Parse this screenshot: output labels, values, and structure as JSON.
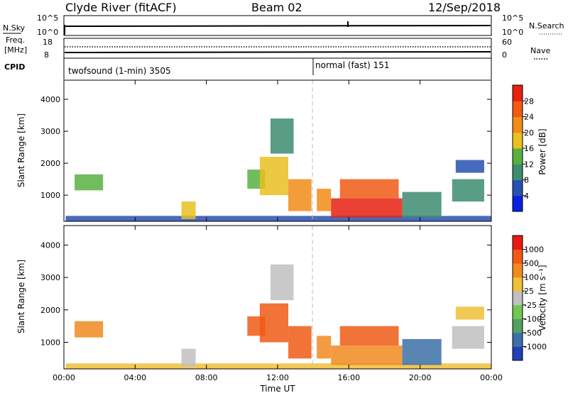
{
  "header": {
    "station": "Clyde River (fitACF)",
    "beam": "Beam 02",
    "date": "12/Sep/2018"
  },
  "top_panels": {
    "nsky_label": "N.Sky",
    "nsearch_label": "N.Search",
    "count_ticks": [
      "10^5",
      "10^0"
    ],
    "freq_label_line1": "Freq.",
    "freq_label_line2": "[MHz]",
    "freq_ticks": [
      "18",
      "8"
    ],
    "nave_label": "Nave",
    "nave_ticks": [
      "60",
      "0"
    ],
    "cpid_label": "CPID",
    "cpid_segments": [
      {
        "label": "twofsound (1-min) 3505",
        "start_hour": 0
      },
      {
        "label": "normal (fast) 151",
        "start_hour": 14
      }
    ]
  },
  "time_axis": {
    "label": "Time UT",
    "ticks": [
      "00:00",
      "04:00",
      "08:00",
      "12:00",
      "16:00",
      "20:00",
      "00:00"
    ]
  },
  "range_axis": {
    "label": "Slant Range [km]",
    "ticks": [
      "1000",
      "2000",
      "3000",
      "4000"
    ]
  },
  "power_scale": {
    "label": "Power [dB]",
    "ticks": [
      "4",
      "8",
      "12",
      "16",
      "20",
      "24",
      "28"
    ],
    "colors": [
      "#0a1fe0",
      "#2850b0",
      "#3c8c70",
      "#58b040",
      "#e8c020",
      "#f08c18",
      "#f05a14",
      "#e82010"
    ]
  },
  "velocity_scale": {
    "label": "Velocity [m s⁻¹]",
    "ticks": [
      "1000",
      "500",
      "100",
      "25",
      "-25",
      "-100",
      "-500",
      "-1000"
    ],
    "colors": [
      "#2040b8",
      "#3c70a8",
      "#50a060",
      "#70c850",
      "#c0c0c0",
      "#f0c038",
      "#f08a20",
      "#f05a14",
      "#e81a10"
    ]
  },
  "chart_data": [
    {
      "type": "heatmap",
      "title": "Power",
      "x_range_hours": [
        0,
        24
      ],
      "y_range_km": [
        180,
        4600
      ],
      "regions": [
        {
          "t0": 0.1,
          "t1": 24,
          "r0": 180,
          "r1": 350,
          "color_index": 1
        },
        {
          "t0": 0.6,
          "t1": 2.2,
          "r0": 1150,
          "r1": 1650,
          "color_index": 3
        },
        {
          "t0": 6.6,
          "t1": 7.4,
          "r0": 250,
          "r1": 800,
          "color_index": 4
        },
        {
          "t0": 10.3,
          "t1": 11.3,
          "r0": 1200,
          "r1": 1800,
          "color_index": 3
        },
        {
          "t0": 11.0,
          "t1": 12.6,
          "r0": 1000,
          "r1": 2200,
          "color_index": 4
        },
        {
          "t0": 11.6,
          "t1": 12.9,
          "r0": 2300,
          "r1": 3400,
          "color_index": 2
        },
        {
          "t0": 12.6,
          "t1": 13.9,
          "r0": 500,
          "r1": 1500,
          "color_index": 5
        },
        {
          "t0": 14.2,
          "t1": 15.0,
          "r0": 500,
          "r1": 1200,
          "color_index": 5
        },
        {
          "t0": 15.0,
          "t1": 19.0,
          "r0": 300,
          "r1": 900,
          "color_index": 7
        },
        {
          "t0": 15.5,
          "t1": 18.8,
          "r0": 900,
          "r1": 1500,
          "color_index": 6
        },
        {
          "t0": 19.0,
          "t1": 21.2,
          "r0": 300,
          "r1": 1100,
          "color_index": 2
        },
        {
          "t0": 21.8,
          "t1": 23.6,
          "r0": 800,
          "r1": 1500,
          "color_index": 2
        },
        {
          "t0": 22.0,
          "t1": 23.6,
          "r0": 1700,
          "r1": 2100,
          "color_index": 1
        }
      ]
    },
    {
      "type": "heatmap",
      "title": "Velocity",
      "x_range_hours": [
        0,
        24
      ],
      "y_range_km": [
        180,
        4600
      ],
      "regions": [
        {
          "t0": 0.1,
          "t1": 24,
          "r0": 180,
          "r1": 350,
          "color_index": 5
        },
        {
          "t0": 0.6,
          "t1": 2.2,
          "r0": 1150,
          "r1": 1650,
          "color_index": 6
        },
        {
          "t0": 6.6,
          "t1": 7.4,
          "r0": 250,
          "r1": 800,
          "color_index": 4
        },
        {
          "t0": 10.3,
          "t1": 11.3,
          "r0": 1200,
          "r1": 1800,
          "color_index": 7
        },
        {
          "t0": 11.0,
          "t1": 12.6,
          "r0": 1000,
          "r1": 2200,
          "color_index": 7
        },
        {
          "t0": 11.6,
          "t1": 12.9,
          "r0": 2300,
          "r1": 3400,
          "color_index": 4
        },
        {
          "t0": 12.6,
          "t1": 13.9,
          "r0": 500,
          "r1": 1500,
          "color_index": 7
        },
        {
          "t0": 14.2,
          "t1": 15.0,
          "r0": 500,
          "r1": 1200,
          "color_index": 6
        },
        {
          "t0": 15.0,
          "t1": 19.0,
          "r0": 300,
          "r1": 900,
          "color_index": 6
        },
        {
          "t0": 15.5,
          "t1": 18.8,
          "r0": 900,
          "r1": 1500,
          "color_index": 7
        },
        {
          "t0": 19.0,
          "t1": 21.2,
          "r0": 300,
          "r1": 1100,
          "color_index": 1
        },
        {
          "t0": 21.8,
          "t1": 23.6,
          "r0": 800,
          "r1": 1500,
          "color_index": 4
        },
        {
          "t0": 22.0,
          "t1": 23.6,
          "r0": 1700,
          "r1": 2100,
          "color_index": 5
        }
      ]
    }
  ]
}
